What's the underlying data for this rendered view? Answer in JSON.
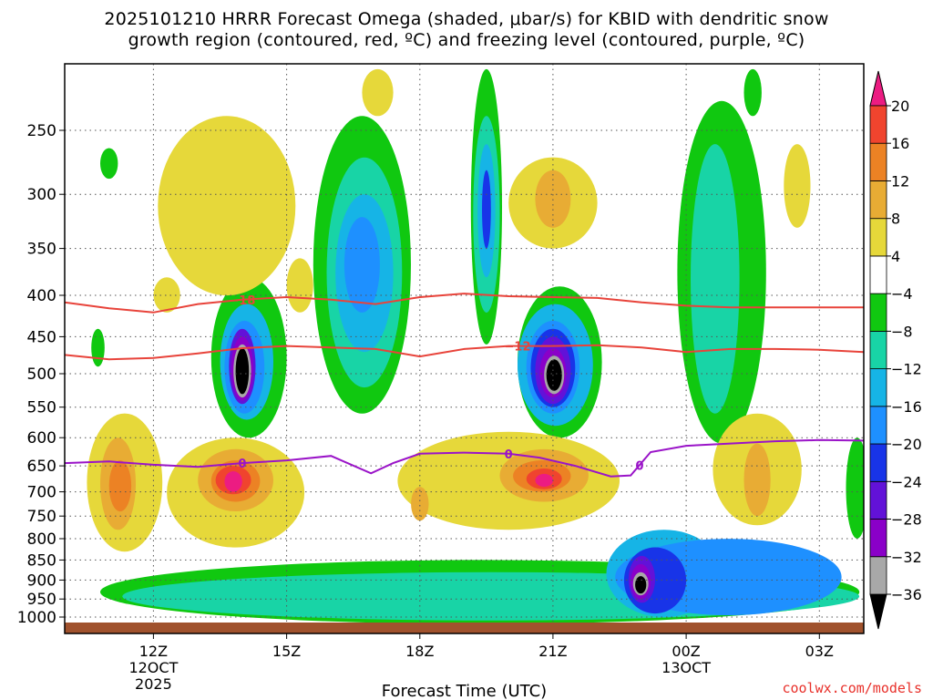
{
  "title_line1": "2025101210 HRRR Forecast Omega (shaded, μbar/s) for KBID with dendritic snow",
  "title_line2": "growth region (contoured, red, ºC) and freezing level (contoured, purple, ºC)",
  "credit": "coolwx.com/models",
  "colors": {
    "grid": "#555555",
    "ground": "#a0522d",
    "dgz_line": "#e8433a",
    "freezing_line": "#9a14c8"
  },
  "chart_data": {
    "type": "heatmap",
    "title": "2025101210 HRRR Forecast Omega (shaded, μbar/s) for KBID with dendritic snow growth region (contoured, red, ºC) and freezing level (contoured, purple, ºC)",
    "xlabel": "Forecast Time (UTC)",
    "ylabel": "",
    "xlim": [
      10.0,
      28.0
    ],
    "ylim": [
      1000,
      200
    ],
    "y_scale": "log",
    "x_ticks": [
      {
        "value": 12,
        "label": "12Z",
        "sub1": "12OCT",
        "sub2": "2025"
      },
      {
        "value": 15,
        "label": "15Z",
        "sub1": "",
        "sub2": ""
      },
      {
        "value": 18,
        "label": "18Z",
        "sub1": "",
        "sub2": ""
      },
      {
        "value": 21,
        "label": "21Z",
        "sub1": "",
        "sub2": ""
      },
      {
        "value": 24,
        "label": "00Z",
        "sub1": "13OCT",
        "sub2": ""
      },
      {
        "value": 27,
        "label": "03Z",
        "sub1": "",
        "sub2": ""
      }
    ],
    "y_ticks": [
      250,
      300,
      350,
      400,
      450,
      500,
      550,
      600,
      650,
      700,
      750,
      800,
      850,
      900,
      950,
      1000
    ],
    "colorbar": {
      "levels": [
        -36,
        -32,
        -28,
        -24,
        -20,
        -16,
        -12,
        -8,
        -4,
        4,
        8,
        12,
        16,
        20
      ],
      "tick_labels": [
        "20",
        "16",
        "12",
        "8",
        "4",
        "−4",
        "−8",
        "−12",
        "−16",
        "−20",
        "−24",
        "−28",
        "−32",
        "−36"
      ],
      "colors": [
        "#000000",
        "#a8a8a8",
        "#8a00c8",
        "#6212d8",
        "#1834e8",
        "#1e90ff",
        "#16b4e6",
        "#18d4a6",
        "#10c810",
        "#ffffff",
        "#e6d83a",
        "#e8ac34",
        "#ec8224",
        "#f0442e",
        "#ec1c82"
      ]
    },
    "features": [
      {
        "name": "omega-min-14Z",
        "x": 13.95,
        "p": 490,
        "value": -40
      },
      {
        "name": "omega-min-21Z",
        "x": 20.6,
        "p": 520,
        "value": -42
      },
      {
        "name": "omega-min-23Z",
        "x": 22.95,
        "p": 910,
        "value": -40
      },
      {
        "name": "omega-max-14Z",
        "x": 13.8,
        "p": 680,
        "value": 18
      },
      {
        "name": "omega-max-21Z",
        "x": 20.8,
        "p": 680,
        "value": 17
      },
      {
        "name": "omega-max-11Z",
        "x": 11.0,
        "p": 680,
        "value": 11
      },
      {
        "name": "omega-rise-19Z",
        "x": 19.0,
        "p": 310,
        "value": -24
      }
    ],
    "series": [
      {
        "name": "-18",
        "label": "−18",
        "label_x": 14.0,
        "x": [
          10.0,
          11.0,
          12.0,
          13.0,
          14.0,
          15.0,
          16.0,
          17.0,
          18.0,
          19.0,
          20.0,
          21.0,
          22.0,
          23.0,
          24.0,
          25.0,
          26.0,
          27.0,
          28.0
        ],
        "p": [
          408,
          415,
          420,
          410,
          405,
          402,
          405,
          410,
          402,
          398,
          401,
          402,
          403,
          408,
          412,
          414,
          414,
          414,
          414
        ]
      },
      {
        "name": "-12",
        "label": "−12",
        "label_x": 20.2,
        "x": [
          10.0,
          11.0,
          12.0,
          13.0,
          14.0,
          15.0,
          16.0,
          17.0,
          18.0,
          19.0,
          20.0,
          21.0,
          22.0,
          23.0,
          24.0,
          25.0,
          26.0,
          27.0,
          28.0
        ],
        "p": [
          474,
          480,
          478,
          472,
          465,
          462,
          464,
          466,
          476,
          466,
          462,
          462,
          461,
          464,
          470,
          466,
          466,
          467,
          470
        ]
      },
      {
        "name": "0",
        "label": "0",
        "label_x": 14.0,
        "x": [
          10.0,
          11.0,
          12.0,
          13.0,
          14.0,
          15.0,
          16.0,
          16.9,
          17.4,
          18.0,
          19.0,
          20.0,
          20.7,
          21.5,
          22.3,
          22.75,
          23.2,
          24.0,
          25.0,
          26.0,
          27.0,
          28.0
        ],
        "p": [
          645,
          642,
          648,
          652,
          645,
          640,
          632,
          664,
          645,
          628,
          626,
          628,
          635,
          650,
          670,
          668,
          625,
          614,
          610,
          606,
          604,
          605
        ],
        "label2": "0",
        "label2_x": 22.95,
        "label3": "0",
        "label3_x": 20.0
      }
    ]
  }
}
